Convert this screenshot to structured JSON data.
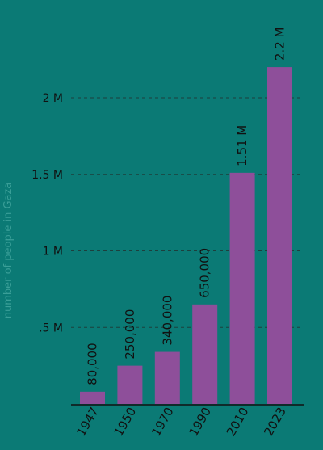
{
  "chart_data": {
    "type": "bar",
    "categories": [
      "1947",
      "1950",
      "1970",
      "1990",
      "2010",
      "2023"
    ],
    "values": [
      80000,
      250000,
      340000,
      650000,
      1510000,
      2200000
    ],
    "data_labels": [
      "80,000",
      "250,000",
      "340,000",
      "650,000",
      "1.51 M",
      "2.2 M"
    ],
    "ylabel": "number of people in Gaza",
    "ylim": [
      0,
      2300000
    ],
    "yticks": [
      500000,
      1000000,
      1500000,
      2000000
    ],
    "ytick_labels": [
      ".5 M",
      "1 M",
      "1.5 M",
      "2 M"
    ],
    "grid": "horizontal dashed",
    "colors": {
      "background": "#0b7a75",
      "bar": "#8e4f9a",
      "grid": "#1d3f3d",
      "axis": "#111111",
      "ylabel": "#3a9f98"
    }
  }
}
